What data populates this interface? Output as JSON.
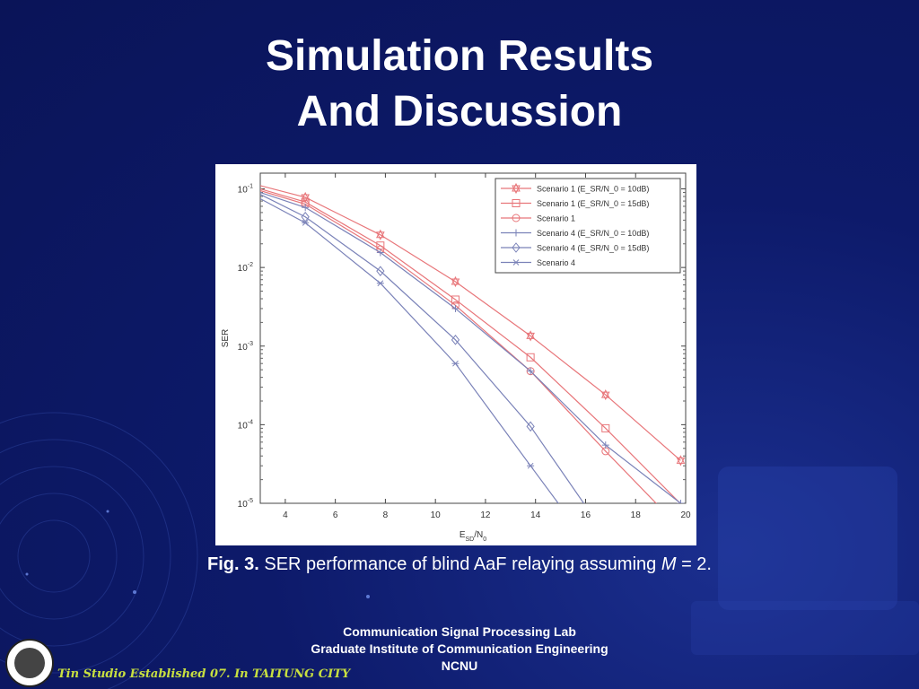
{
  "slide": {
    "title_line1": "Simulation Results",
    "title_line2": "And Discussion",
    "caption_prefix": "Fig. 3.",
    "caption_text": "SER performance of blind AaF relaying assuming",
    "caption_var": "M",
    "caption_suffix": "= 2.",
    "footer_line1": "Communication Signal Processing Lab",
    "footer_line2": "Graduate Institute of Communication Engineering",
    "footer_line3": "NCNU",
    "studio_text": "Tin Studio Established 07. In TAITUNG CITY"
  },
  "colors": {
    "background": "#0d1a6a",
    "red_series": "#e8767a",
    "blue_series": "#7a82b8",
    "studio_text": "#c8e040"
  },
  "chart_data": {
    "type": "line",
    "xlabel": "E_SD/N_0",
    "ylabel": "SER",
    "xlim": [
      3,
      20
    ],
    "ylim_log10": [
      -5,
      -0.8
    ],
    "x_ticks": [
      "4",
      "6",
      "8",
      "10",
      "12",
      "14",
      "16",
      "18",
      "20"
    ],
    "y_ticks": [
      "10^-1",
      "10^-2",
      "10^-3",
      "10^-4",
      "10^-5"
    ],
    "legend_position": "top-right",
    "series": [
      {
        "name": "Scenario 1 (E_SR/N_0 = 10dB)",
        "color": "#e8767a",
        "marker": "hexstar",
        "x": [
          3,
          4.8,
          7.8,
          10.8,
          13.8,
          16.8,
          19.8
        ],
        "y": [
          0.11,
          0.078,
          0.026,
          0.0066,
          0.00135,
          0.00024,
          3.5e-05
        ]
      },
      {
        "name": "Scenario 1 (E_SR/N_0 = 15dB)",
        "color": "#e8767a",
        "marker": "square",
        "x": [
          3,
          4.8,
          7.8,
          10.8,
          13.8,
          16.8,
          20
        ],
        "y": [
          0.1,
          0.068,
          0.019,
          0.0039,
          0.00072,
          9e-05,
          8.5e-06
        ]
      },
      {
        "name": "Scenario 1",
        "color": "#e8767a",
        "marker": "circle",
        "x": [
          3,
          4.8,
          7.8,
          10.8,
          13.8,
          16.8,
          19.2
        ],
        "y": [
          0.095,
          0.064,
          0.017,
          0.0033,
          0.00048,
          4.6e-05,
          7.5e-06
        ]
      },
      {
        "name": "Scenario 4 (E_SR/N_0 = 10dB)",
        "color": "#7a82b8",
        "marker": "plus",
        "x": [
          3,
          4.8,
          7.8,
          10.8,
          13.8,
          16.8,
          19.8
        ],
        "y": [
          0.09,
          0.058,
          0.0155,
          0.003,
          0.00048,
          5.5e-05,
          1e-05
        ]
      },
      {
        "name": "Scenario 4 (E_SR/N_0 = 15dB)",
        "color": "#7a82b8",
        "marker": "diamond",
        "x": [
          3,
          4.8,
          7.8,
          10.8,
          13.8,
          16.2
        ],
        "y": [
          0.085,
          0.044,
          0.009,
          0.0012,
          9.5e-05,
          7.5e-06
        ]
      },
      {
        "name": "Scenario 4",
        "color": "#7a82b8",
        "marker": "asterisk",
        "x": [
          3,
          4.8,
          7.8,
          10.8,
          13.8,
          15.2
        ],
        "y": [
          0.075,
          0.037,
          0.0063,
          0.0006,
          3e-05,
          7.5e-06
        ]
      }
    ]
  }
}
